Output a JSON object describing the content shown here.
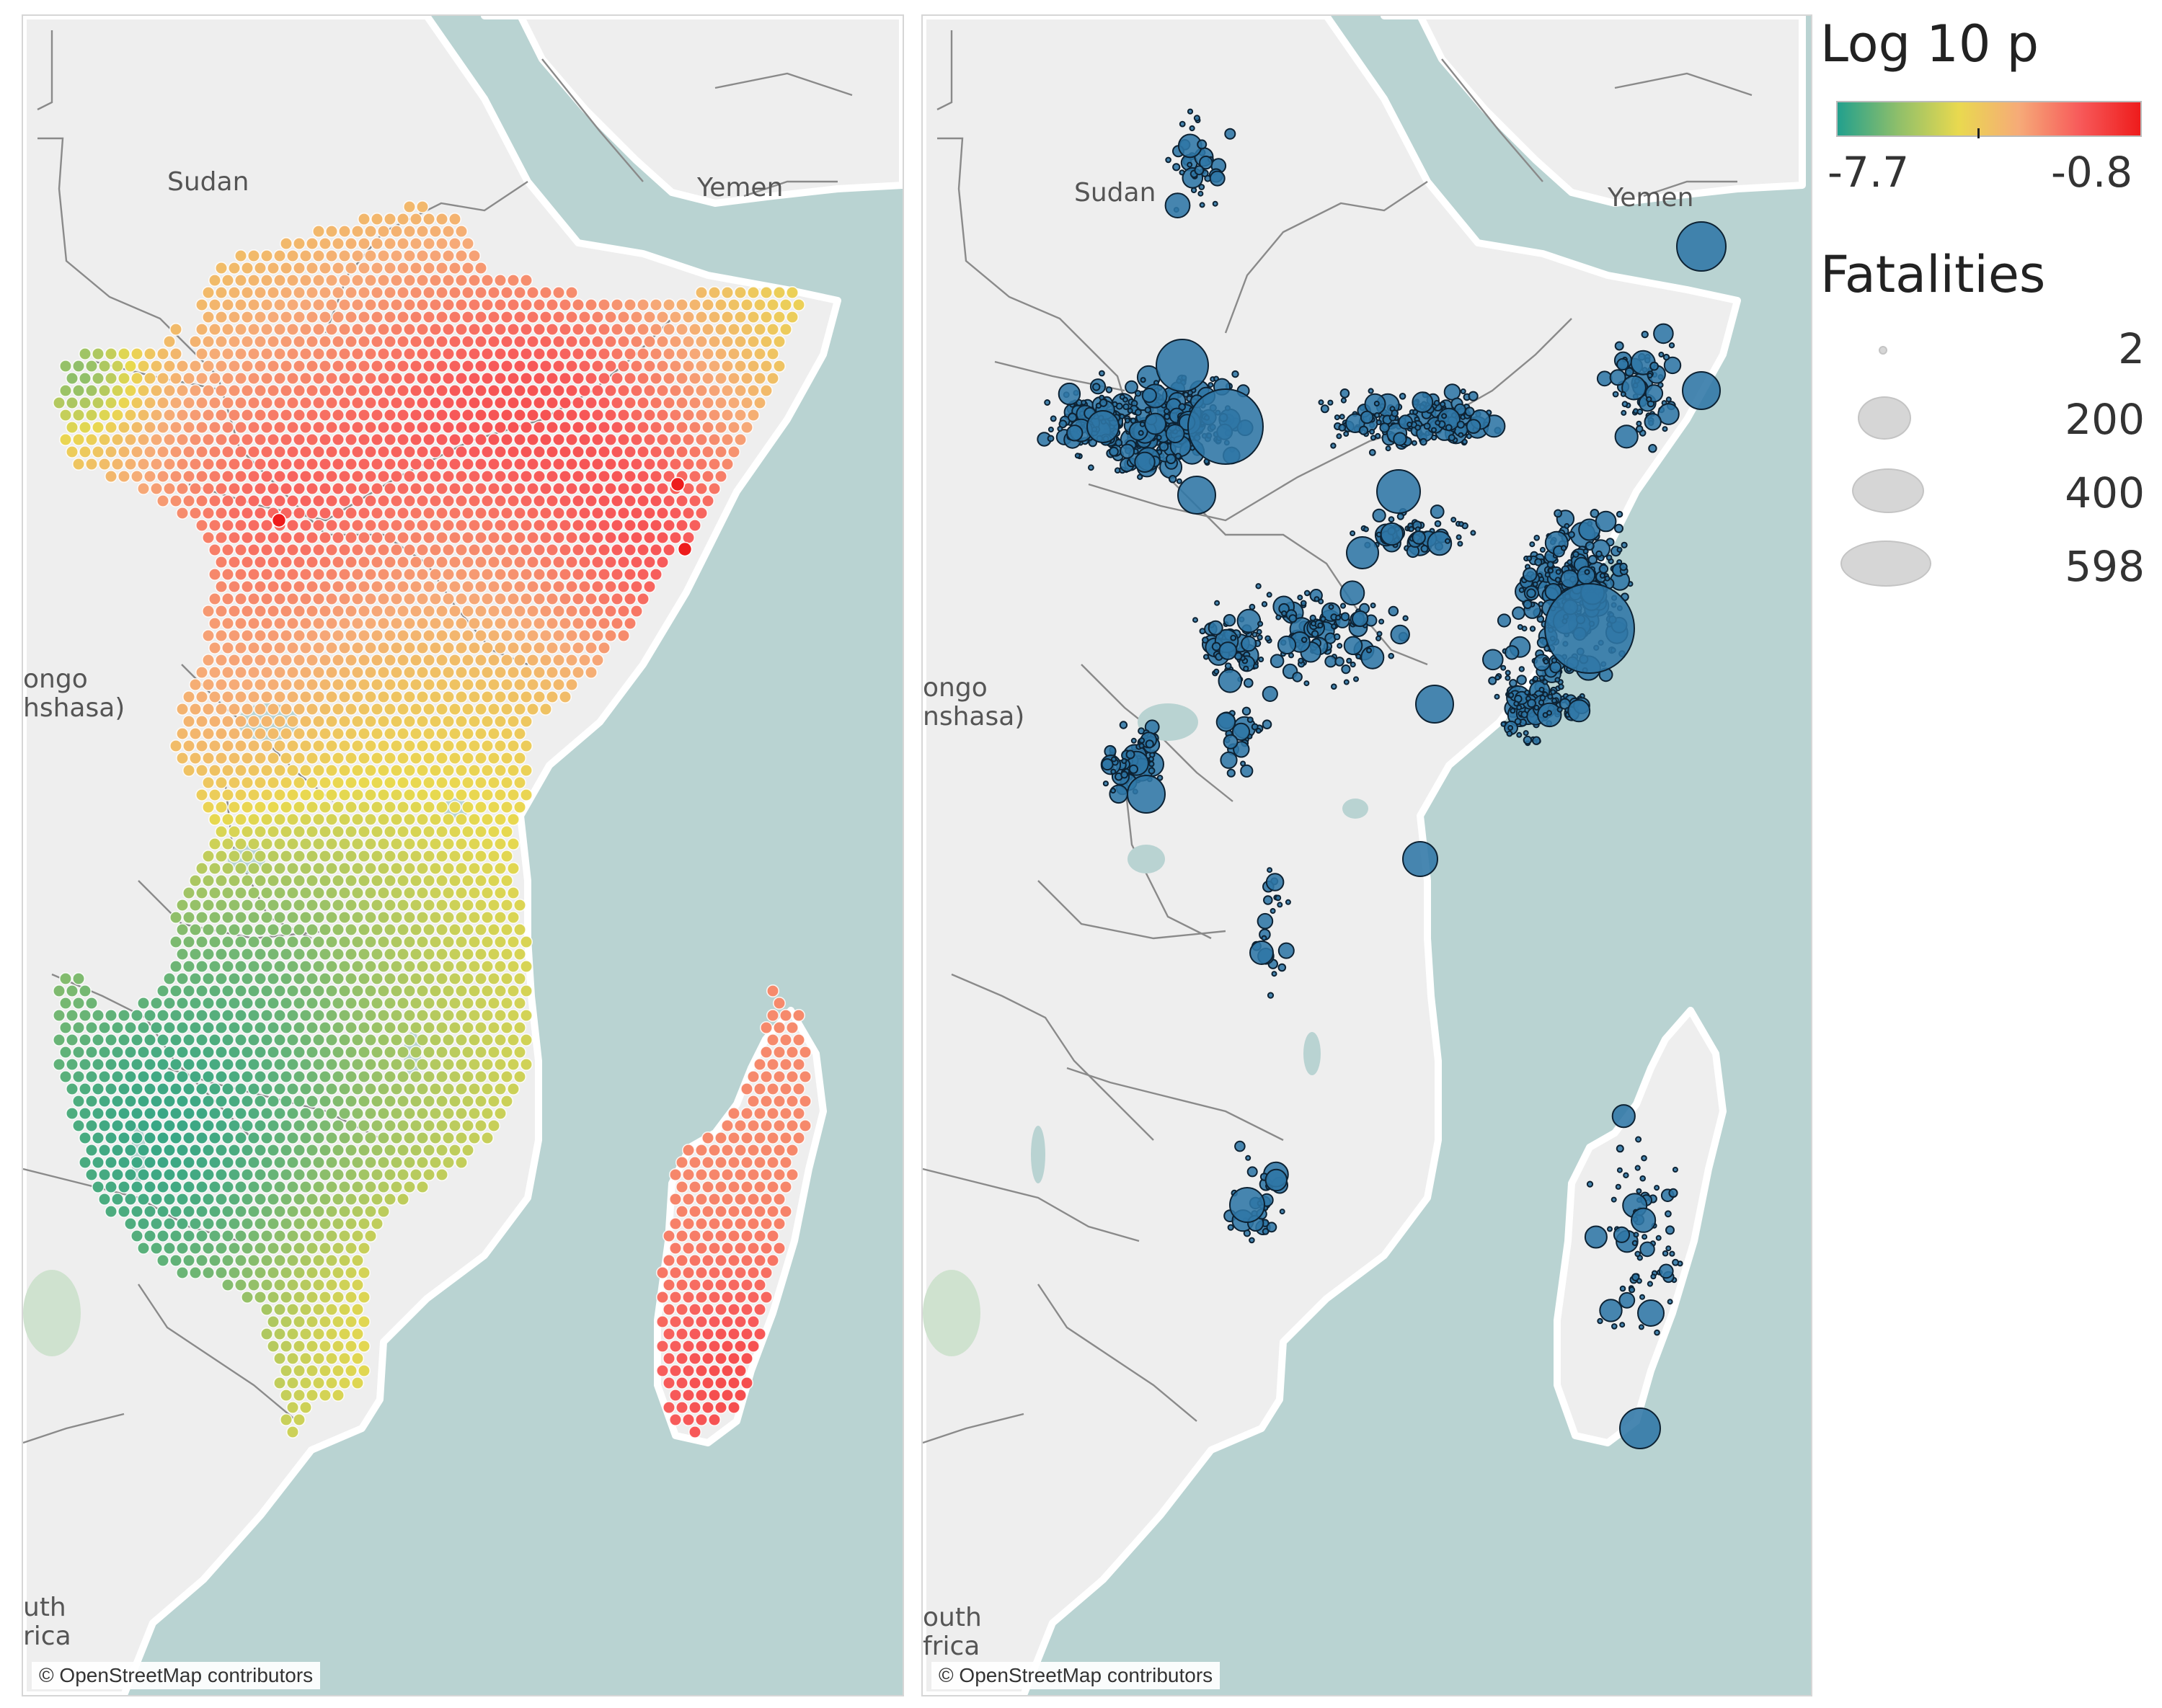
{
  "chart_data": [
    {
      "type": "map",
      "description_source": "left panel",
      "map_labels": {
        "sudan": "Sudan",
        "yemen": "Yemen",
        "congo_1": "ongo",
        "congo_2": "hshasa)",
        "south_africa_1": "uth",
        "south_africa_2": "rica"
      },
      "attribution": "© OpenStreetMap contributors",
      "color_encoding": {
        "title": "Log 10 p",
        "min": -7.7,
        "max": -0.8,
        "colors": [
          "#22a08d",
          "#8fbf6a",
          "#e9d94f",
          "#f6aa78",
          "#f75a5a",
          "#ee1c1c"
        ]
      }
    },
    {
      "type": "map",
      "description_source": "right panel",
      "map_labels": {
        "sudan": "Sudan",
        "yemen": "Yemen",
        "congo_1": "ongo",
        "congo_2": "nshasa)",
        "south_africa_1": "outh",
        "south_africa_2": "frica"
      },
      "attribution": "© OpenStreetMap contributors",
      "size_encoding": {
        "title": "Fatalities",
        "values": [
          2,
          200,
          400,
          598
        ]
      },
      "marker_color": "#2f76a6"
    }
  ],
  "legend": {
    "color_title": "Log 10 p",
    "color_min": "-7.7",
    "color_max": "-0.8",
    "size_title": "Fatalities",
    "size_values": [
      "2",
      "200",
      "400",
      "598"
    ]
  }
}
